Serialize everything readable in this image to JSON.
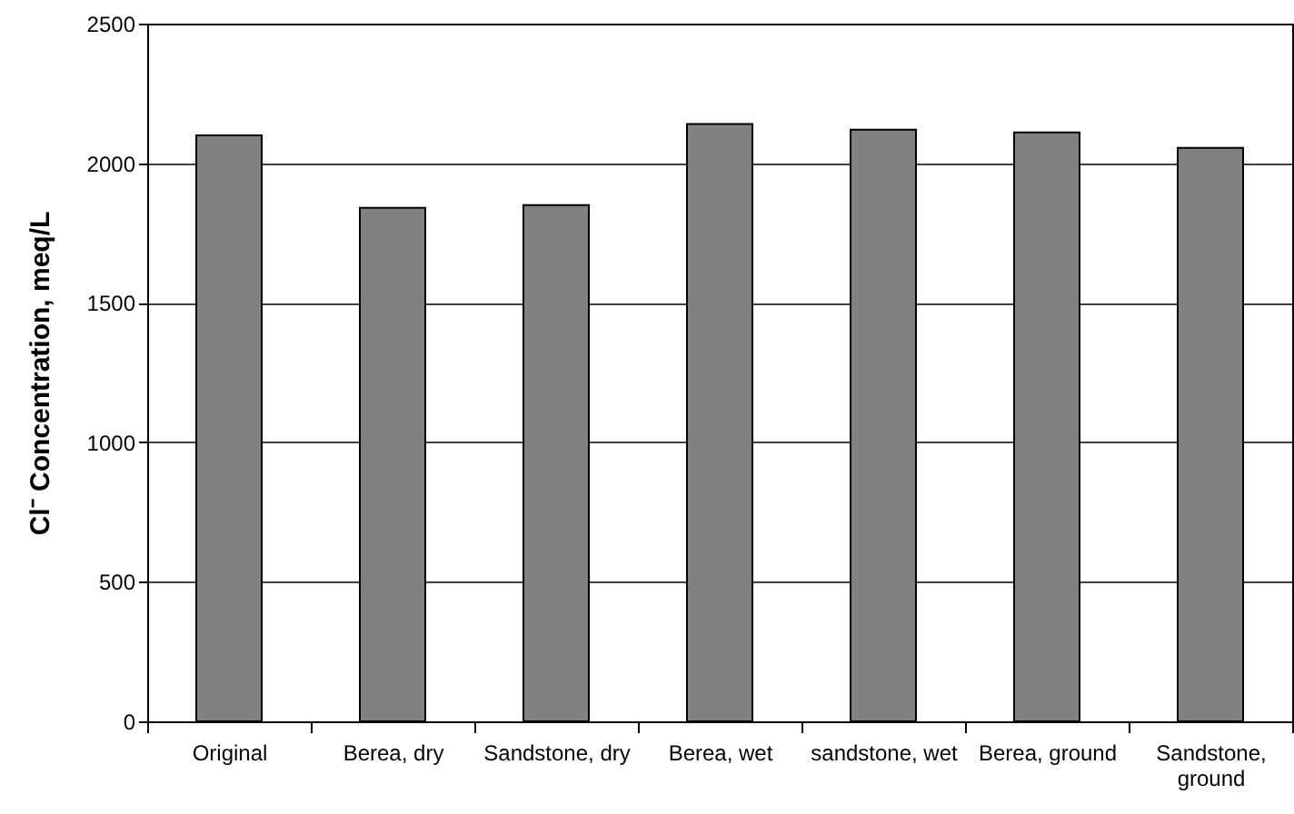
{
  "chart_data": {
    "type": "bar",
    "ylabel": "Cl⁻ Concentration, meq/L",
    "categories": [
      "Original",
      "Berea, dry",
      "Sandstone, dry",
      "Berea, wet",
      "sandstone, wet",
      "Berea, ground",
      "Sandstone, ground"
    ],
    "values": [
      2100,
      1840,
      1850,
      2140,
      2120,
      2110,
      2055
    ],
    "color": "#808080",
    "ylim": [
      0,
      2500
    ],
    "yticks": [
      0,
      500,
      1000,
      1500,
      2000,
      2500
    ],
    "grid": "y"
  }
}
